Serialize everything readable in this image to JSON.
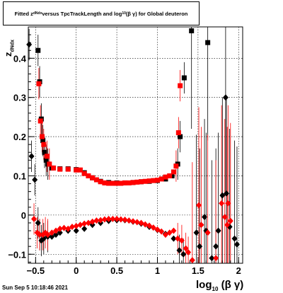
{
  "title": {
    "prefix": "Fitted z",
    "sub": "dNdx",
    "middle": " versus TpcTrackLength and log",
    "sub2": "10",
    "suffix": " (β γ) for Global deuteron"
  },
  "footer": "Sun Sep  5 10:18:46 2021",
  "xlabel": {
    "main": "log",
    "sub": "10",
    "rest": " (β γ)"
  },
  "ylabel": {
    "main": "z",
    "sub": "dNdx"
  },
  "colors": {
    "upper": "#ff0000",
    "lower": "#000000"
  },
  "chart_data": {
    "type": "scatter",
    "xlim": [
      -0.59,
      2.05
    ],
    "ylim": [
      -0.123,
      0.48
    ],
    "grid": true,
    "xticks": [
      -0.5,
      0,
      0.5,
      1,
      1.5,
      2
    ],
    "xtick_labels": [
      "−0.5",
      "0",
      "0.5",
      "1",
      "1.5",
      "2"
    ],
    "yticks": [
      -0.1,
      0,
      0.1,
      0.2,
      0.3,
      0.4
    ],
    "ytick_labels": [
      "−0.1",
      "0",
      "0.1",
      "0.2",
      "0.3",
      "0.4"
    ],
    "series": [
      {
        "marker": "square",
        "color": "black",
        "points": [
          [
            -0.47,
            0.42
          ],
          [
            -0.45,
            0.34
          ],
          [
            -0.43,
            0.245
          ],
          [
            -0.41,
            0.19
          ],
          [
            -0.39,
            0.16
          ],
          [
            -0.37,
            0.14
          ],
          [
            -0.35,
            0.13
          ],
          [
            -0.3,
            0.12
          ],
          [
            -0.2,
            0.118
          ],
          [
            -0.1,
            0.118
          ],
          [
            0.0,
            0.116
          ],
          [
            0.1,
            0.108
          ],
          [
            0.2,
            0.095
          ],
          [
            0.3,
            0.086
          ],
          [
            0.4,
            0.083
          ],
          [
            0.5,
            0.082
          ],
          [
            0.6,
            0.082
          ],
          [
            0.7,
            0.083
          ],
          [
            0.8,
            0.085
          ],
          [
            0.9,
            0.086
          ],
          [
            1.0,
            0.088
          ],
          [
            1.1,
            0.092
          ],
          [
            1.18,
            0.1
          ],
          [
            1.25,
            0.13
          ],
          [
            1.28,
            0.2
          ],
          [
            1.33,
            0.35
          ],
          [
            1.42,
            0.47
          ],
          [
            1.62,
            0.44
          ]
        ]
      },
      {
        "marker": "square",
        "color": "red",
        "points": [
          [
            -0.46,
            0.335
          ],
          [
            -0.44,
            0.24
          ],
          [
            -0.42,
            0.2
          ],
          [
            -0.4,
            0.18
          ],
          [
            -0.36,
            0.15
          ],
          [
            -0.33,
            0.13
          ],
          [
            -0.28,
            0.12
          ],
          [
            -0.2,
            0.117
          ],
          [
            -0.1,
            0.117
          ],
          [
            0.0,
            0.115
          ],
          [
            0.05,
            0.115
          ],
          [
            0.1,
            0.106
          ],
          [
            0.15,
            0.1
          ],
          [
            0.2,
            0.095
          ],
          [
            0.25,
            0.09
          ],
          [
            0.3,
            0.085
          ],
          [
            0.35,
            0.082
          ],
          [
            0.4,
            0.081
          ],
          [
            0.45,
            0.081
          ],
          [
            0.5,
            0.081
          ],
          [
            0.55,
            0.081
          ],
          [
            0.6,
            0.082
          ],
          [
            0.65,
            0.082
          ],
          [
            0.7,
            0.083
          ],
          [
            0.75,
            0.084
          ],
          [
            0.8,
            0.085
          ],
          [
            0.85,
            0.086
          ],
          [
            0.9,
            0.087
          ],
          [
            0.95,
            0.088
          ],
          [
            1.0,
            0.089
          ],
          [
            1.05,
            0.092
          ],
          [
            1.1,
            0.097
          ],
          [
            1.15,
            0.1
          ],
          [
            1.2,
            0.11
          ],
          [
            1.23,
            0.125
          ],
          [
            1.26,
            0.21
          ],
          [
            1.28,
            0.33
          ]
        ]
      },
      {
        "marker": "diamond",
        "color": "black",
        "points": [
          [
            -0.58,
            0.435
          ],
          [
            -0.55,
            0.15
          ],
          [
            -0.51,
            0.09
          ],
          [
            -0.47,
            -0.02
          ],
          [
            -0.45,
            -0.05
          ],
          [
            -0.43,
            -0.065
          ],
          [
            -0.4,
            -0.06
          ],
          [
            -0.35,
            -0.055
          ],
          [
            -0.3,
            -0.055
          ],
          [
            -0.25,
            -0.05
          ],
          [
            -0.2,
            -0.045
          ],
          [
            -0.1,
            -0.04
          ],
          [
            0.0,
            -0.04
          ],
          [
            0.1,
            -0.035
          ],
          [
            0.2,
            -0.025
          ],
          [
            0.3,
            -0.02
          ],
          [
            0.4,
            -0.015
          ],
          [
            0.5,
            -0.013
          ],
          [
            0.6,
            -0.013
          ],
          [
            0.7,
            -0.017
          ],
          [
            0.8,
            -0.022
          ],
          [
            0.9,
            -0.03
          ],
          [
            1.0,
            -0.038
          ],
          [
            1.1,
            -0.048
          ],
          [
            1.2,
            -0.06
          ],
          [
            1.27,
            -0.09
          ],
          [
            1.32,
            -0.1
          ],
          [
            1.48,
            -0.045
          ],
          [
            1.52,
            -0.08
          ],
          [
            1.58,
            -0.005
          ],
          [
            1.6,
            -0.04
          ],
          [
            1.67,
            -0.11
          ],
          [
            1.72,
            -0.08
          ],
          [
            1.75,
            -0.04
          ],
          [
            1.8,
            0.05
          ],
          [
            1.84,
            0.3
          ],
          [
            1.85,
            0.055
          ],
          [
            1.89,
            -0.03
          ],
          [
            1.95,
            -0.06
          ],
          [
            1.98,
            -0.075
          ]
        ]
      },
      {
        "marker": "diamond",
        "color": "red",
        "points": [
          [
            -0.52,
            -0.01
          ],
          [
            -0.48,
            -0.045
          ],
          [
            -0.45,
            -0.05
          ],
          [
            -0.41,
            -0.05
          ],
          [
            -0.38,
            -0.045
          ],
          [
            -0.35,
            -0.05
          ],
          [
            -0.3,
            -0.045
          ],
          [
            -0.25,
            -0.04
          ],
          [
            -0.2,
            -0.035
          ],
          [
            -0.15,
            -0.033
          ],
          [
            -0.1,
            -0.035
          ],
          [
            -0.05,
            -0.03
          ],
          [
            0.0,
            -0.028
          ],
          [
            0.05,
            -0.025
          ],
          [
            0.1,
            -0.022
          ],
          [
            0.15,
            -0.02
          ],
          [
            0.2,
            -0.017
          ],
          [
            0.25,
            -0.014
          ],
          [
            0.3,
            -0.013
          ],
          [
            0.35,
            -0.011
          ],
          [
            0.4,
            -0.01
          ],
          [
            0.45,
            -0.01
          ],
          [
            0.5,
            -0.01
          ],
          [
            0.55,
            -0.011
          ],
          [
            0.6,
            -0.012
          ],
          [
            0.65,
            -0.014
          ],
          [
            0.7,
            -0.016
          ],
          [
            0.75,
            -0.018
          ],
          [
            0.8,
            -0.02
          ],
          [
            0.85,
            -0.024
          ],
          [
            0.9,
            -0.027
          ],
          [
            0.95,
            -0.032
          ],
          [
            1.0,
            -0.037
          ],
          [
            1.05,
            -0.042
          ],
          [
            1.1,
            -0.05
          ],
          [
            1.15,
            -0.045
          ],
          [
            1.2,
            -0.04
          ],
          [
            1.25,
            -0.06
          ],
          [
            1.3,
            -0.065
          ],
          [
            1.35,
            -0.085
          ],
          [
            1.38,
            -0.095
          ],
          [
            1.43,
            -0.115
          ],
          [
            1.51,
            0.025
          ],
          [
            1.54,
            -0.025
          ],
          [
            1.62,
            -0.045
          ],
          [
            1.72,
            -0.11
          ],
          [
            1.79,
            0.03
          ],
          [
            1.83,
            -0.005
          ],
          [
            1.86,
            -0.025
          ],
          [
            1.87,
            0.03
          ],
          [
            1.9,
            -0.015
          ]
        ]
      }
    ]
  }
}
